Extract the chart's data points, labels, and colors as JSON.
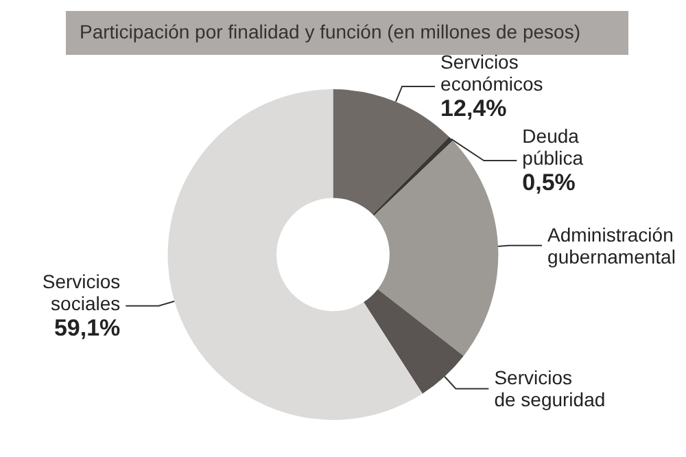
{
  "chart_data": {
    "type": "donut",
    "subtitle": "Participación por finalidad y función (en millones de pesos)",
    "categories": [
      "Servicios económicos",
      "Deuda pública",
      "Administración gubernamental",
      "Servicios de seguridad",
      "Servicios sociales"
    ],
    "values": [
      12.4,
      0.5,
      22.6,
      5.4,
      59.1
    ],
    "colors": [
      "#6f6a66",
      "#3a3634",
      "#9d9995",
      "#5a5552",
      "#dcdbd9"
    ],
    "value_labels": [
      "12,4%",
      "0,5%",
      null,
      null,
      "59,1%"
    ]
  }
}
